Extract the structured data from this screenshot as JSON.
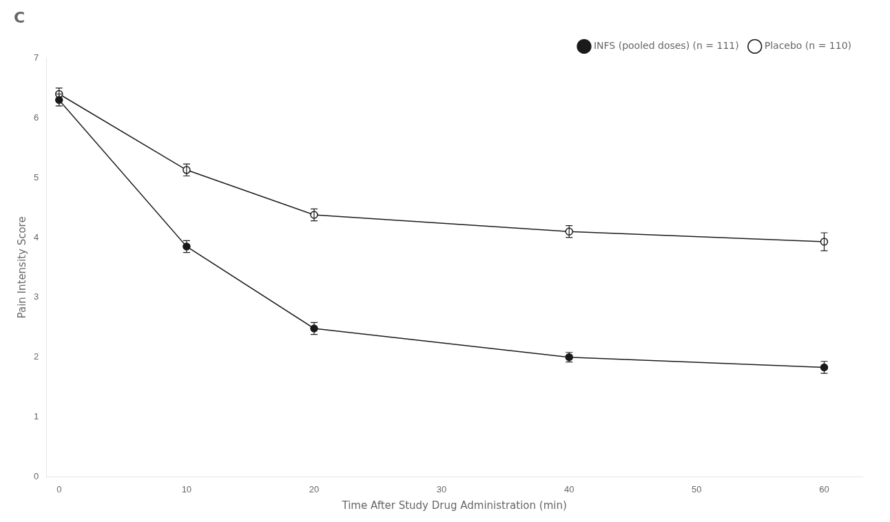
{
  "chart_data": {
    "type": "line",
    "annotations": [
      "C"
    ],
    "x_label": "Time After Study Drug Administration (min)",
    "y_label": "Pain Intensity Score",
    "x": [
      0,
      10,
      20,
      40,
      60
    ],
    "series": [
      {
        "name": "INFS (pooled doses) (n = 111)",
        "color": "#1a1a1a",
        "marker": "circle",
        "values": [
          6.3,
          3.85,
          2.48,
          2.0,
          1.83
        ],
        "errors": [
          0.1,
          0.1,
          0.1,
          0.08,
          0.1
        ]
      },
      {
        "name": "Placebo (n = 110)",
        "color": "#1a1a1a",
        "marker": "open_circle",
        "values": [
          6.4,
          5.13,
          4.38,
          4.1,
          3.93
        ],
        "errors": [
          0.1,
          0.1,
          0.1,
          0.1,
          0.15
        ]
      }
    ],
    "xlim": [
      -1,
      63
    ],
    "ylim": [
      0,
      7
    ],
    "xticks": [
      0,
      10,
      20,
      30,
      40,
      50,
      60
    ],
    "yticks": [
      0,
      1,
      2,
      3,
      4,
      5,
      6,
      7
    ],
    "grid": false,
    "legend": "upper right"
  }
}
